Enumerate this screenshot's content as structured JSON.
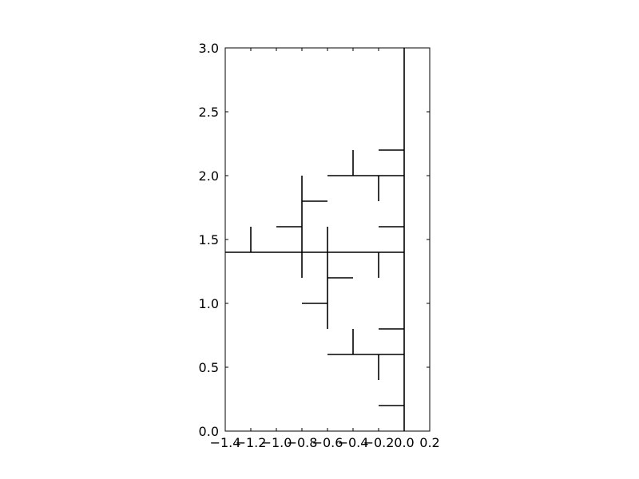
{
  "chart_data": {
    "type": "line",
    "title": "",
    "xlabel": "",
    "ylabel": "",
    "xlim": [
      -1.4,
      0.2
    ],
    "ylim": [
      0.0,
      3.0
    ],
    "grid": false,
    "x_ticks": [
      -1.4,
      -1.2,
      -1.0,
      -0.8,
      -0.6,
      -0.4,
      -0.2,
      0.0,
      0.2
    ],
    "x_tick_labels": [
      "−1.4",
      "−1.2",
      "−1.0",
      "−0.8",
      "−0.6",
      "−0.4",
      "−0.2",
      "0.0",
      "0.2"
    ],
    "y_ticks": [
      0.0,
      0.5,
      1.0,
      1.5,
      2.0,
      2.5,
      3.0
    ],
    "y_tick_labels": [
      "0.0",
      "0.5",
      "1.0",
      "1.5",
      "2.0",
      "2.5",
      "3.0"
    ],
    "line_color": "#000000",
    "segments": [
      {
        "x": [
          0.0,
          0.0
        ],
        "y": [
          0.0,
          3.0
        ]
      },
      {
        "x": [
          -1.4,
          0.0
        ],
        "y": [
          1.4,
          1.4
        ]
      },
      {
        "x": [
          -1.2,
          -1.2
        ],
        "y": [
          1.4,
          1.6
        ]
      },
      {
        "x": [
          -1.0,
          -0.8
        ],
        "y": [
          1.6,
          1.6
        ]
      },
      {
        "x": [
          -0.8,
          -0.8
        ],
        "y": [
          1.2,
          2.0
        ]
      },
      {
        "x": [
          -0.8,
          -0.6
        ],
        "y": [
          1.8,
          1.8
        ]
      },
      {
        "x": [
          -0.6,
          -0.6
        ],
        "y": [
          0.8,
          1.6
        ]
      },
      {
        "x": [
          -0.6,
          -0.4
        ],
        "y": [
          1.2,
          1.2
        ]
      },
      {
        "x": [
          -0.8,
          -0.6
        ],
        "y": [
          1.0,
          1.0
        ]
      },
      {
        "x": [
          -0.2,
          -0.2
        ],
        "y": [
          1.2,
          1.4
        ]
      },
      {
        "x": [
          -0.2,
          0.0
        ],
        "y": [
          1.6,
          1.6
        ]
      },
      {
        "x": [
          -0.6,
          0.0
        ],
        "y": [
          2.0,
          2.0
        ]
      },
      {
        "x": [
          -0.4,
          -0.4
        ],
        "y": [
          2.0,
          2.2
        ]
      },
      {
        "x": [
          -0.2,
          -0.2
        ],
        "y": [
          1.8,
          2.0
        ]
      },
      {
        "x": [
          -0.2,
          0.0
        ],
        "y": [
          2.2,
          2.2
        ]
      },
      {
        "x": [
          -0.6,
          0.0
        ],
        "y": [
          0.6,
          0.6
        ]
      },
      {
        "x": [
          -0.4,
          -0.4
        ],
        "y": [
          0.6,
          0.8
        ]
      },
      {
        "x": [
          -0.2,
          -0.2
        ],
        "y": [
          0.4,
          0.6
        ]
      },
      {
        "x": [
          -0.2,
          0.0
        ],
        "y": [
          0.8,
          0.8
        ]
      },
      {
        "x": [
          -0.2,
          0.0
        ],
        "y": [
          0.2,
          0.2
        ]
      }
    ]
  }
}
